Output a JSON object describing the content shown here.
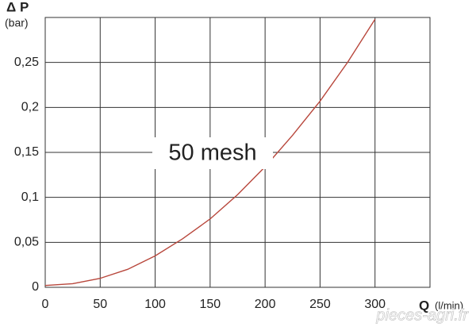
{
  "chart_data": {
    "type": "line",
    "y_label": "Δ P",
    "y_unit": "(bar)",
    "x_label": "Q",
    "x_unit": "(l/min)",
    "annotation": "50 mesh",
    "watermark": "pieces-agri.fr",
    "x": [
      0,
      25,
      50,
      75,
      100,
      125,
      150,
      175,
      200,
      225,
      250,
      275,
      300
    ],
    "series": [
      {
        "name": "50 mesh",
        "color": "#b8473c",
        "values": [
          0.002,
          0.004,
          0.01,
          0.02,
          0.035,
          0.054,
          0.076,
          0.103,
          0.134,
          0.169,
          0.207,
          0.25,
          0.298
        ]
      }
    ],
    "xlim": [
      0,
      350
    ],
    "ylim": [
      0,
      0.3
    ],
    "xticks": [
      0,
      50,
      100,
      150,
      200,
      250,
      300
    ],
    "yticks": [
      0,
      {
        "value": 0.05,
        "label": "0,05"
      },
      {
        "value": 0.1,
        "label": "0,1"
      },
      {
        "value": 0.15,
        "label": "0,15"
      },
      {
        "value": 0.2,
        "label": "0,2"
      },
      {
        "value": 0.25,
        "label": "0,25"
      }
    ],
    "grid": true
  }
}
